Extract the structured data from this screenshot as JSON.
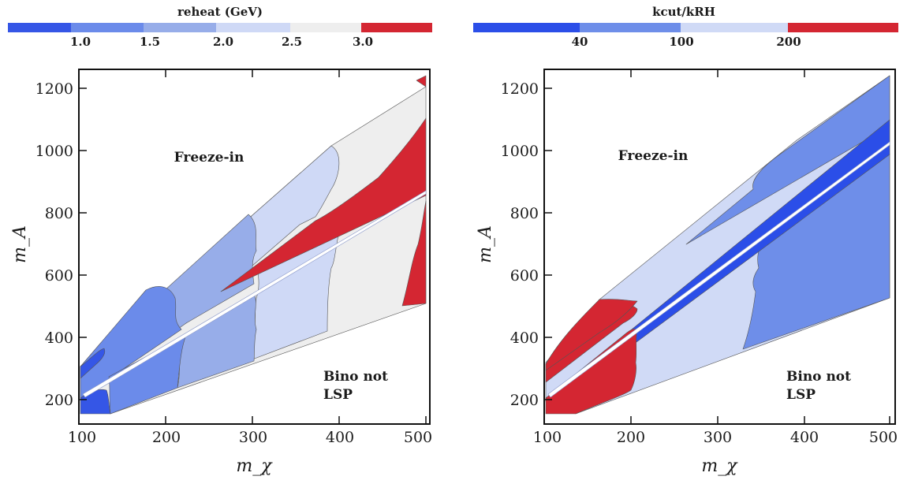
{
  "chart_data": [
    {
      "type": "contour",
      "x_label": "m_χ",
      "y_label": "m_A",
      "x_range": [
        100,
        500
      ],
      "y_range": [
        120,
        1270
      ],
      "x_ticks": [
        100,
        200,
        300,
        400,
        500
      ],
      "y_ticks": [
        200,
        400,
        600,
        800,
        1000,
        1200
      ],
      "colorbar": {
        "title": "reheat (GeV)",
        "boundaries": [
          "1.0",
          "1.5",
          "2.0",
          "2.5",
          "3.0"
        ],
        "colors": [
          "#3556e6",
          "#6b8bea",
          "#97ade9",
          "#cfd9f6",
          "#eeeeee",
          "#d42632"
        ]
      },
      "annotations": {
        "upper": "Freeze-in",
        "lower_line1": "Bino not",
        "lower_line2": "LSP"
      }
    },
    {
      "type": "contour",
      "x_label": "m_χ",
      "y_label": "m_A",
      "x_range": [
        100,
        500
      ],
      "y_range": [
        120,
        1270
      ],
      "x_ticks": [
        100,
        200,
        300,
        400,
        500
      ],
      "y_ticks": [
        200,
        400,
        600,
        800,
        1000,
        1200
      ],
      "colorbar": {
        "title": "kcut/kRH",
        "boundaries": [
          "40",
          "100",
          "200"
        ],
        "colors": [
          "#2b4ee8",
          "#6e8ee9",
          "#d0daf6",
          "#d42632"
        ]
      },
      "annotations": {
        "upper": "Freeze-in",
        "lower_line1": "Bino not",
        "lower_line2": "LSP"
      }
    }
  ]
}
